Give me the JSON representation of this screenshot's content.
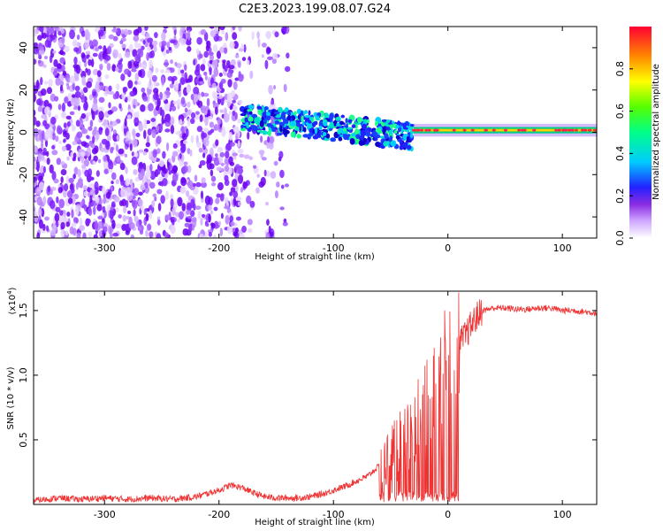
{
  "figure": {
    "title": "C2E3.2023.199.08.07.G24"
  },
  "chart_data": [
    {
      "type": "heatmap",
      "xlabel": "Height of straight line (km)",
      "ylabel": "Frequency (Hz)",
      "xlim": [
        -362,
        130
      ],
      "ylim": [
        -50,
        50
      ],
      "xticks": [
        -300,
        -200,
        -100,
        0,
        100
      ],
      "xtick_labels": [
        "-300",
        "-200",
        "-100",
        "0",
        "100"
      ],
      "yticks": [
        -40,
        -20,
        0,
        20,
        40
      ],
      "ytick_labels": [
        "-40",
        "-20",
        "0",
        "20",
        "40"
      ],
      "colorbar": {
        "label": "Normalized spectral amplitude",
        "range": [
          0,
          1
        ],
        "ticks": [
          0.0,
          0.2,
          0.4,
          0.6,
          0.8
        ],
        "tick_labels": [
          "0.0",
          "0.2",
          "0.4",
          "0.6",
          "0.8"
        ],
        "colormap": "rainbow"
      },
      "regions": [
        {
          "x_range": [
            -362,
            -180
          ],
          "freq_range": [
            -50,
            50
          ],
          "amplitude": 0.1,
          "description_level": "broadband noise"
        },
        {
          "x_range": [
            -180,
            -140
          ],
          "freq_range": [
            -50,
            50
          ],
          "amplitude": 0.05
        },
        {
          "x_range": [
            -180,
            -30
          ],
          "freq_center_start": 7,
          "freq_center_end": -2,
          "amplitude": 0.35
        },
        {
          "x_range": [
            -30,
            130
          ],
          "freq_center": 1,
          "amplitude": 0.9
        }
      ]
    },
    {
      "type": "line",
      "xlabel": "Height of straight line (km)",
      "ylabel": "SNR (10 * v/v)",
      "yscale_label": "(x10",
      "yscale_exponent": "4",
      "yscale_suffix": ")",
      "xlim": [
        -362,
        130
      ],
      "ylim": [
        0,
        1.65
      ],
      "xticks": [
        -300,
        -200,
        -100,
        0,
        100
      ],
      "xtick_labels": [
        "-300",
        "-200",
        "-100",
        "0",
        "100"
      ],
      "yticks": [
        0.5,
        1.0,
        1.5
      ],
      "ytick_labels": [
        "0.5",
        "1.0",
        "1.5"
      ],
      "color": "#ee2222",
      "series": [
        {
          "x": [
            -362,
            -340,
            -320,
            -300,
            -280,
            -260,
            -240,
            -220,
            -200,
            -190,
            -180,
            -170,
            -160,
            -150,
            -140,
            -130,
            -120,
            -110,
            -100,
            -90,
            -80,
            -70,
            -60,
            -50,
            -40,
            -35,
            -30,
            -25,
            -20,
            -15,
            -12,
            -8,
            -5,
            0,
            5,
            10,
            15,
            20,
            25,
            30,
            40,
            50,
            60,
            70,
            80,
            90,
            100,
            110,
            120,
            130
          ],
          "y": [
            0.03,
            0.05,
            0.04,
            0.05,
            0.04,
            0.05,
            0.04,
            0.06,
            0.11,
            0.15,
            0.13,
            0.09,
            0.06,
            0.05,
            0.05,
            0.05,
            0.06,
            0.08,
            0.11,
            0.14,
            0.18,
            0.22,
            0.3,
            0.38,
            0.48,
            0.55,
            0.62,
            0.72,
            0.8,
            0.88,
            0.95,
            1.02,
            1.05,
            1.12,
            1.18,
            1.25,
            1.3,
            1.38,
            1.45,
            1.5,
            1.52,
            1.52,
            1.51,
            1.51,
            1.52,
            1.52,
            1.5,
            1.5,
            1.49,
            1.48
          ]
        }
      ]
    }
  ]
}
